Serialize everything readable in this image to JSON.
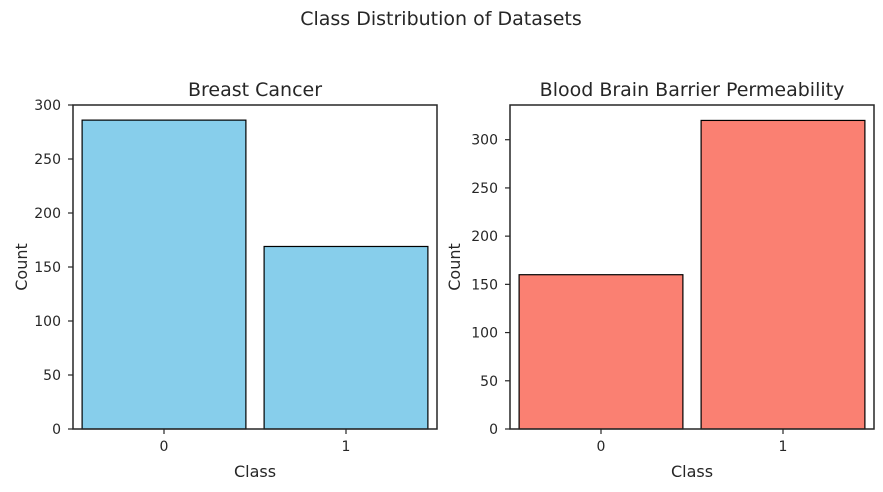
{
  "figure": {
    "suptitle": "Class Distribution of Datasets"
  },
  "chart_data": [
    {
      "type": "bar",
      "title": "Breast Cancer",
      "xlabel": "Class",
      "ylabel": "Count",
      "categories": [
        "0",
        "1"
      ],
      "values": [
        286,
        169
      ],
      "ylim": [
        0,
        300
      ],
      "yticks": [
        0,
        50,
        100,
        150,
        200,
        250,
        300
      ],
      "bar_color": "#87CEEB",
      "edge_color": "#000000",
      "grid": false,
      "legend": "none"
    },
    {
      "type": "bar",
      "title": "Blood Brain Barrier Permeability",
      "xlabel": "Class",
      "ylabel": "Count",
      "categories": [
        "0",
        "1"
      ],
      "values": [
        160,
        320
      ],
      "ylim": [
        0,
        336
      ],
      "yticks": [
        0,
        50,
        100,
        150,
        200,
        250,
        300
      ],
      "bar_color": "#FA8072",
      "edge_color": "#000000",
      "grid": false,
      "legend": "none"
    }
  ]
}
